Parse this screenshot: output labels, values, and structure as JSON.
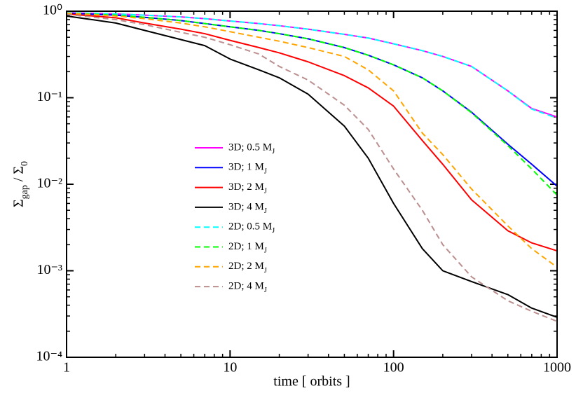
{
  "chart_data": {
    "type": "line",
    "xlabel": "time [ orbits ]",
    "ylabel": "Σgap / Σ0",
    "xscale": "log",
    "yscale": "log",
    "xlim": [
      1,
      1000
    ],
    "ylim": [
      0.0001,
      1
    ],
    "xticks": [
      1,
      10,
      100,
      1000
    ],
    "yticks": [
      {
        "value": 0.0001,
        "label": "10⁻⁴"
      },
      {
        "value": 0.001,
        "label": "10⁻³"
      },
      {
        "value": 0.01,
        "label": "10⁻²"
      },
      {
        "value": 0.1,
        "label": "10⁻¹"
      },
      {
        "value": 1,
        "label": "10⁰"
      }
    ],
    "x": [
      1,
      2,
      3,
      5,
      7,
      10,
      15,
      20,
      30,
      50,
      70,
      100,
      150,
      200,
      300,
      500,
      700,
      1000
    ],
    "series": [
      {
        "name": "3D; 0.5 MJ",
        "color": "#ff00ff",
        "dashed": false,
        "values": [
          0.96,
          0.93,
          0.9,
          0.86,
          0.82,
          0.77,
          0.72,
          0.68,
          0.62,
          0.54,
          0.49,
          0.42,
          0.35,
          0.3,
          0.23,
          0.12,
          0.075,
          0.06
        ]
      },
      {
        "name": "3D; 1 MJ",
        "color": "#0000ff",
        "dashed": false,
        "values": [
          0.95,
          0.9,
          0.85,
          0.78,
          0.72,
          0.66,
          0.6,
          0.55,
          0.48,
          0.38,
          0.31,
          0.24,
          0.17,
          0.12,
          0.068,
          0.029,
          0.017,
          0.0095
        ]
      },
      {
        "name": "3D; 2 MJ",
        "color": "#ff0000",
        "dashed": false,
        "values": [
          0.93,
          0.84,
          0.73,
          0.62,
          0.55,
          0.46,
          0.38,
          0.33,
          0.26,
          0.18,
          0.13,
          0.08,
          0.032,
          0.017,
          0.0066,
          0.0029,
          0.0021,
          0.0017
        ]
      },
      {
        "name": "3D; 4 MJ",
        "color": "#000000",
        "dashed": false,
        "values": [
          0.88,
          0.73,
          0.6,
          0.47,
          0.4,
          0.28,
          0.21,
          0.17,
          0.11,
          0.047,
          0.02,
          0.006,
          0.0018,
          0.001,
          0.00075,
          0.00053,
          0.00037,
          0.00029
        ]
      },
      {
        "name": "2D; 0.5 MJ",
        "color": "#00ffff",
        "dashed": true,
        "values": [
          0.96,
          0.93,
          0.9,
          0.86,
          0.82,
          0.77,
          0.72,
          0.68,
          0.62,
          0.54,
          0.49,
          0.42,
          0.35,
          0.3,
          0.23,
          0.12,
          0.074,
          0.058
        ]
      },
      {
        "name": "2D; 1 MJ",
        "color": "#00ff00",
        "dashed": true,
        "values": [
          0.95,
          0.9,
          0.85,
          0.78,
          0.72,
          0.66,
          0.6,
          0.55,
          0.48,
          0.38,
          0.31,
          0.24,
          0.17,
          0.12,
          0.067,
          0.028,
          0.015,
          0.0075
        ]
      },
      {
        "name": "2D; 2 MJ",
        "color": "#ffa500",
        "dashed": true,
        "values": [
          0.95,
          0.88,
          0.82,
          0.73,
          0.66,
          0.58,
          0.5,
          0.45,
          0.38,
          0.3,
          0.21,
          0.12,
          0.039,
          0.022,
          0.0088,
          0.0033,
          0.0018,
          0.0011
        ]
      },
      {
        "name": "2D; 4 MJ",
        "color": "#bc8f8f",
        "dashed": true,
        "values": [
          0.92,
          0.8,
          0.7,
          0.57,
          0.5,
          0.41,
          0.32,
          0.23,
          0.16,
          0.082,
          0.043,
          0.015,
          0.005,
          0.002,
          0.00085,
          0.00045,
          0.00034,
          0.00026
        ]
      }
    ]
  }
}
